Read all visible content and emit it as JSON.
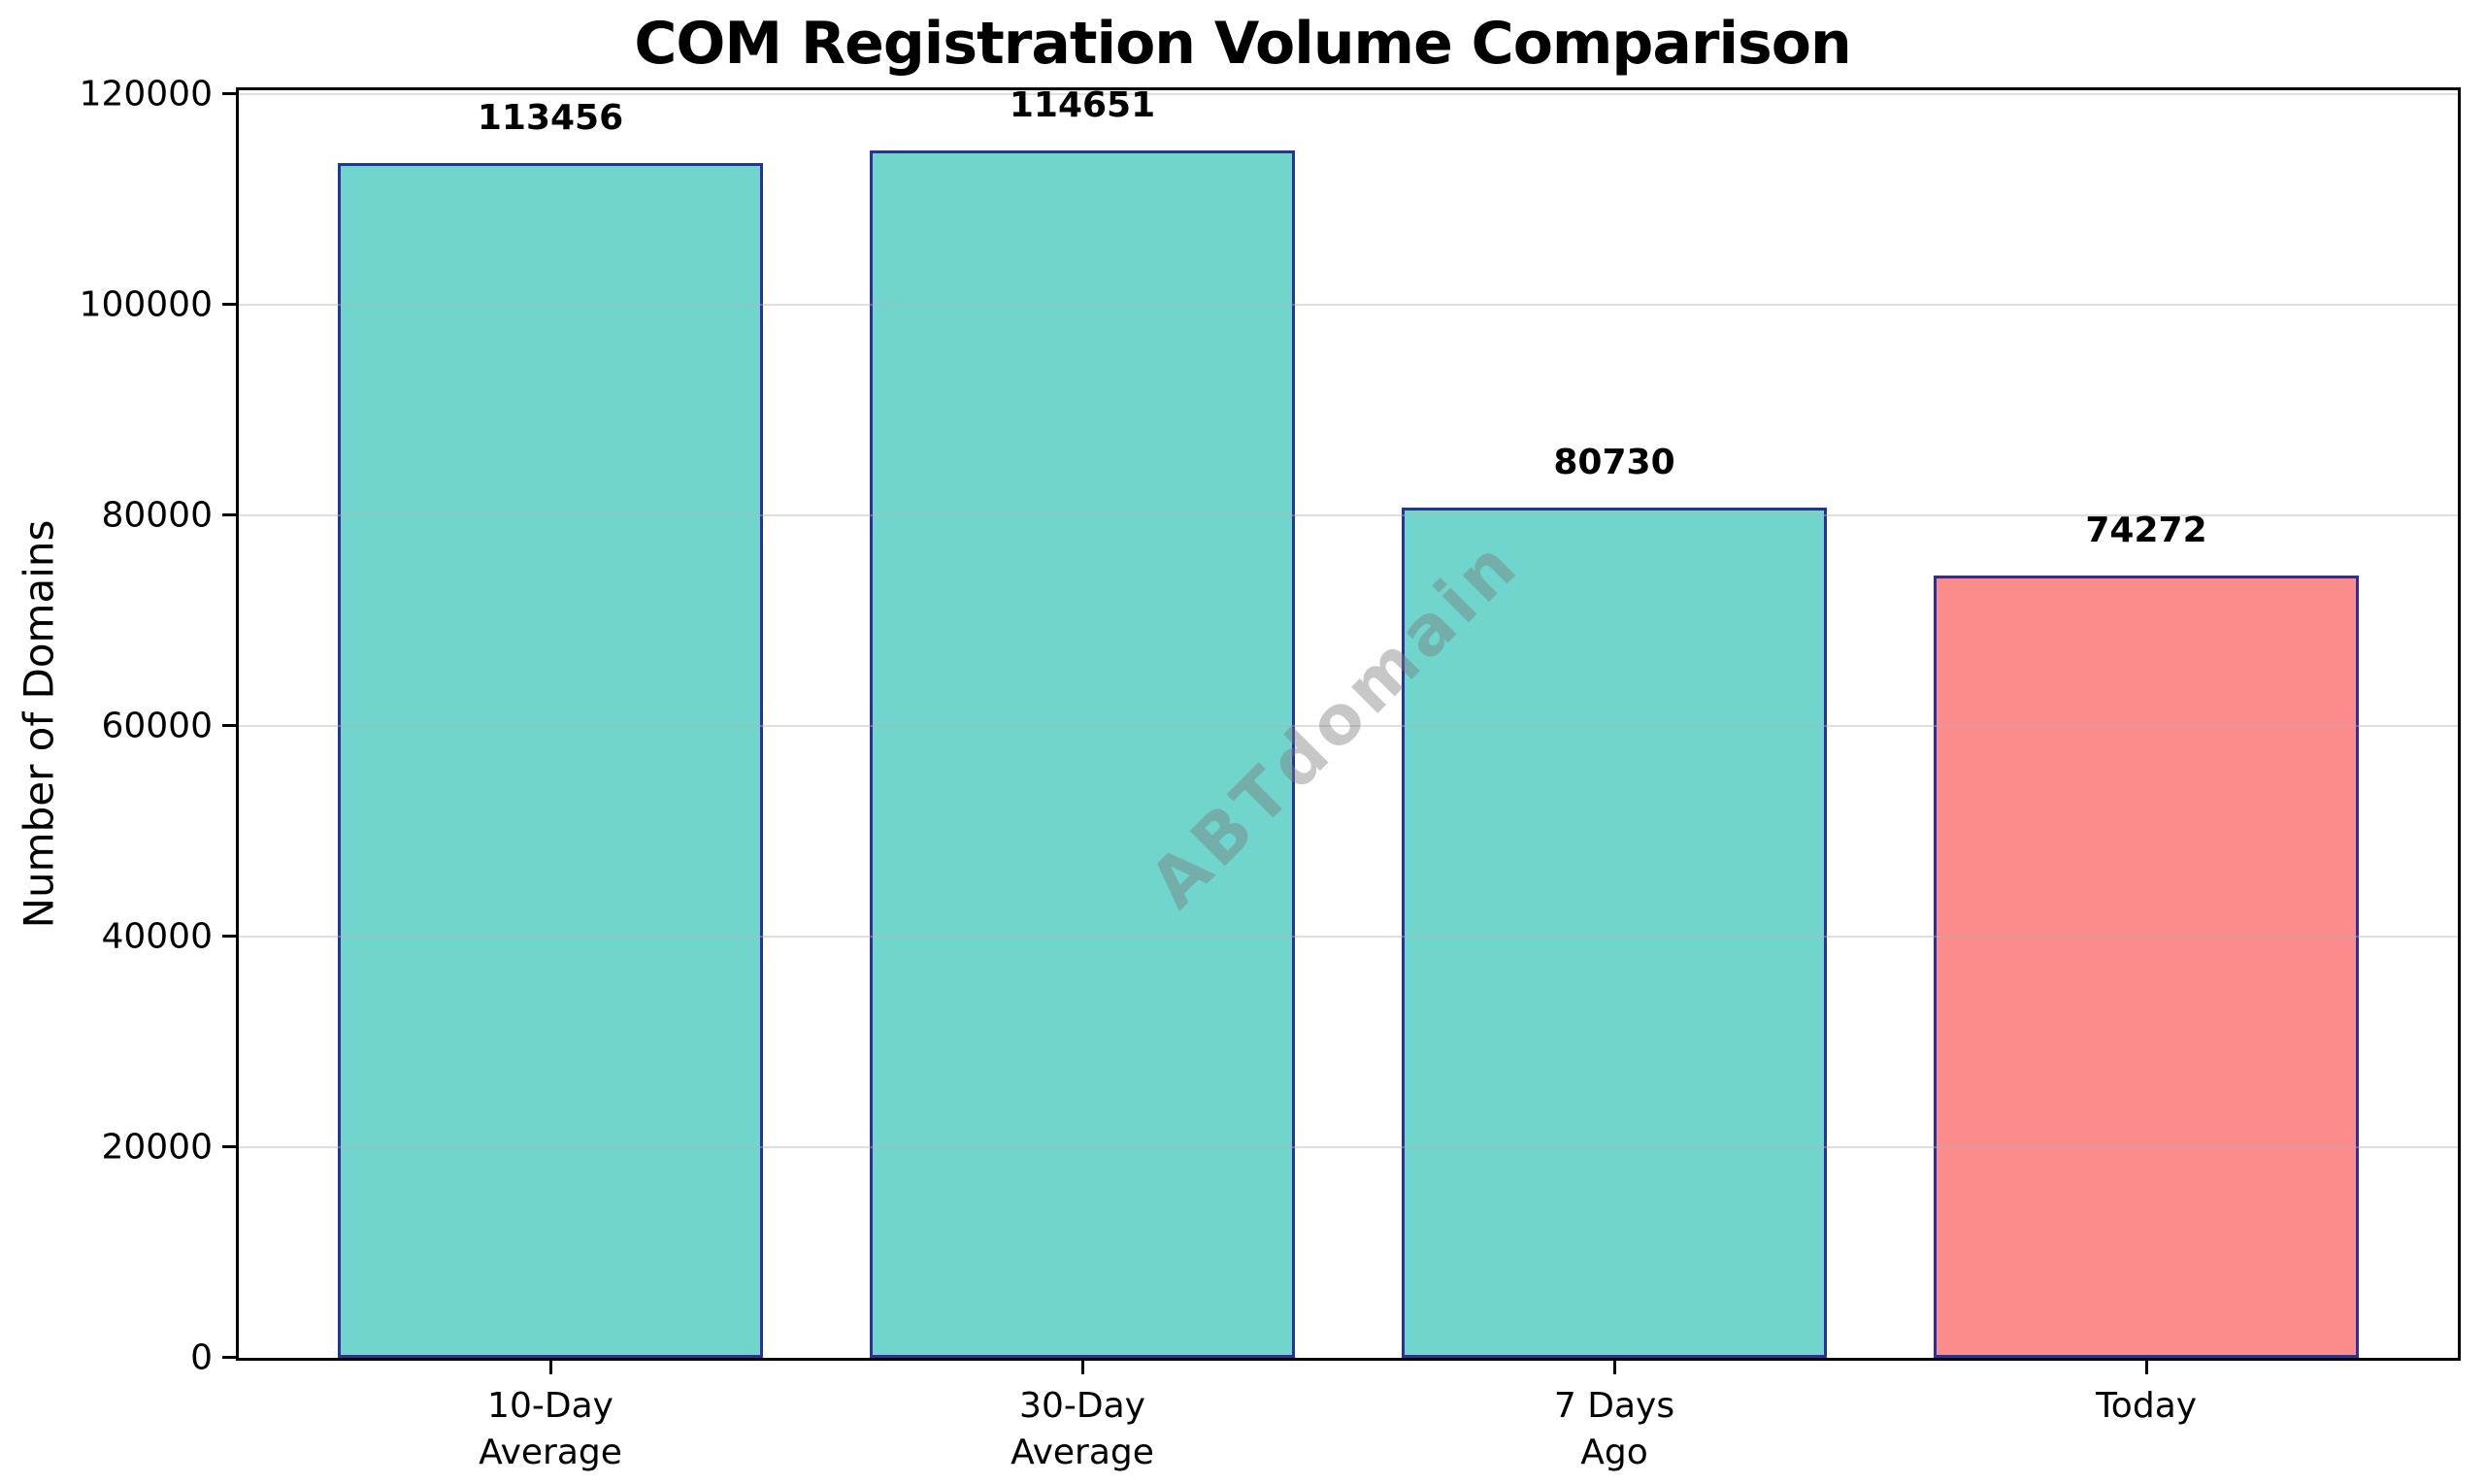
{
  "chart_data": {
    "type": "bar",
    "title": "COM Registration Volume Comparison",
    "ylabel": "Number of Domains",
    "xlabel": "",
    "categories": [
      "10-Day\nAverage",
      "30-Day\nAverage",
      "7 Days\nAgo",
      "Today"
    ],
    "values": [
      113456,
      114651,
      80730,
      74272
    ],
    "value_labels": [
      "113456",
      "114651",
      "80730",
      "74272"
    ],
    "bar_colors": [
      "#6FD5CD",
      "#6FD5CD",
      "#6FD5CD",
      "#FC8B8B"
    ],
    "bar_edge_color": "#2D3096",
    "yticks": [
      0,
      20000,
      40000,
      60000,
      80000,
      100000,
      120000
    ],
    "ytick_labels": [
      "0",
      "20000",
      "40000",
      "60000",
      "80000",
      "100000",
      "120000"
    ],
    "ylim": [
      0,
      120000
    ],
    "grid": "horizontal",
    "gridline_color": "#E2E2E2",
    "legend": "none",
    "watermark": "ABTdomain",
    "background_color": "#FFFFFF",
    "spine_color": "#000000"
  }
}
